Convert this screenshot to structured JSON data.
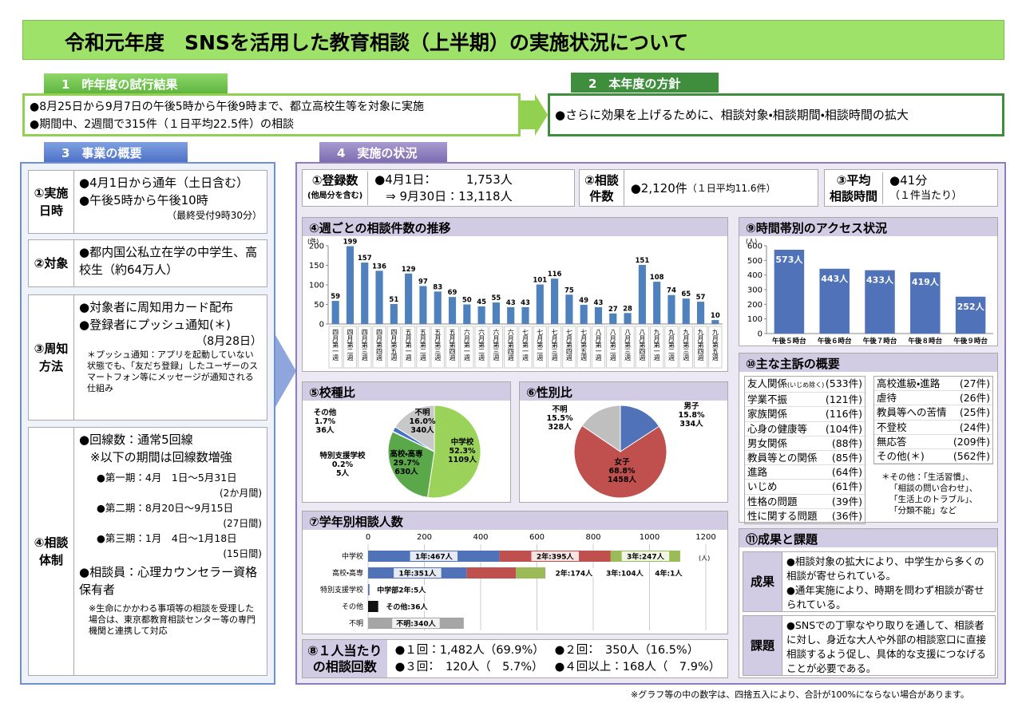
{
  "title": "令和元年度　SNSを活用した教育相談（上半期）の実施状況について",
  "section1": {
    "heading": "1　昨年度の試行結果",
    "lines": [
      "●8月25日から9月7日の午後5時から午後9時まで、都立高校生等を対象に実施",
      "●期間中、2週間で315件（１日平均22.5件）の相談"
    ]
  },
  "section2": {
    "heading": "2　本年度の方針",
    "lines": [
      "●さらに効果を上げるために、相談対象・相談期間・相談時間の拡大"
    ]
  },
  "overview": {
    "heading": "3　事業の概要",
    "blocks": [
      {
        "label": [
          "①実施",
          "日時"
        ],
        "lines": [
          "●4月1日から通年（土日含む）",
          "●午後5時から午後10時",
          "（最終受付9時30分）"
        ]
      },
      {
        "label": [
          "②対象"
        ],
        "lines": [
          "●都内国公私立在学の中学生、高校生（約64万人）"
        ]
      },
      {
        "label": [
          "③周知",
          "方法"
        ],
        "lines": [
          "●対象者に周知用カード配布",
          "●登録者にプッシュ通知(＊)",
          "（8月28日）",
          "＊プッシュ通知：アプリを起動していない状態でも、「友だち登録」したユーザーのスマートフォン等にメッセージが通知される仕組み"
        ]
      },
      {
        "label": [
          "④相談",
          "体制"
        ],
        "lines": [
          "●回線数：通常5回線",
          "※以下の期間は回線数増強",
          "●第一期：4月　1日～5月31日",
          "(2か月間)",
          "●第二期：8月20日～9月15日",
          "(27日間)",
          "●第三期：1月　4日～1月18日",
          "(15日間)",
          "●相談員：心理カウンセラー資格保有者",
          "※生命にかかわる事項等の相談を受理した場合は、東京都教育相談センター等の専門機関と連携して対応"
        ]
      }
    ]
  },
  "status": {
    "heading": "4　実施の状況",
    "registrations": {
      "label": [
        "①登録数",
        "(他局分を含む)"
      ],
      "lines": [
        "●4月1日：　　　1,753人",
        "⇒ 9月30日：13,118人"
      ]
    },
    "consultations": {
      "label": [
        "②相談",
        "件数"
      ],
      "lines": [
        "●2,120件",
        "（１日平均11.6件）"
      ]
    },
    "avg_time": {
      "label": [
        "③平均",
        "相談時間"
      ],
      "lines": [
        "●41分",
        "（１件当たり）"
      ]
    },
    "per_person": {
      "label": [
        "⑧１人当たり",
        "の相談回数"
      ],
      "lines": [
        "●１回：1,482人（69.9%）",
        "●２回：　350人（16.5%）",
        "●３回：　120人（　5.7%）",
        "●４回以上：168人（　7.9%）"
      ]
    },
    "complaints": {
      "title": "⑩主な主訴の概要",
      "left": [
        [
          "友人関係",
          "(いじめ除く)",
          "(533件)"
        ],
        [
          "学業不振",
          "(121件)"
        ],
        [
          "家族関係",
          "(116件)"
        ],
        [
          "心身の健康等",
          "(104件)"
        ],
        [
          "男女関係",
          "(88件)"
        ],
        [
          "教員等との関係",
          "(85件)"
        ],
        [
          "進路",
          "(64件)"
        ],
        [
          "いじめ",
          "(61件)"
        ],
        [
          "性格の問題",
          "(39件)"
        ],
        [
          "性に関する問題",
          "(36件)"
        ]
      ],
      "right": [
        [
          "高校進級・進路",
          "(27件)"
        ],
        [
          "虐待",
          "(26件)"
        ],
        [
          "教員等への苦情",
          "(25件)"
        ],
        [
          "不登校",
          "(24件)"
        ],
        [
          "無応答",
          "(209件)"
        ],
        [
          "その他(＊)",
          "(562件)"
        ]
      ],
      "note": [
        "＊その他：「生活習慣」、",
        "「相談の問い合わせ」、",
        "「生活上のトラブル」、",
        "「分類不能」など"
      ]
    },
    "results": {
      "title": "⑪成果と課題",
      "items": [
        {
          "label": "成果",
          "lines": [
            "●相談対象の拡大により、中学生から多くの相談が寄せられている。",
            "●通年実施により、時期を問わず相談が寄せられている。"
          ]
        },
        {
          "label": "課題",
          "lines": [
            "●SNSでの丁寧なやり取りを通して、相談者に対し、身近な大人や外部の相談窓口に直接相談するよう促し、具体的な支援につなげることが必要である。"
          ]
        }
      ]
    }
  },
  "footer": "※グラフ等の中の数字は、四捨五入により、合計が100%にならない場合があります。",
  "chart_data": [
    {
      "type": "bar",
      "title": "④週ごとの相談件数の推移",
      "y_unit": "(件)",
      "categories": [
        "四月第一週",
        "四月第二週",
        "四月第三週",
        "四月第四週",
        "四月第五週",
        "五月第一週",
        "五月第二週",
        "五月第三週",
        "五月第四週",
        "六月第一週",
        "六月第二週",
        "六月第三週",
        "六月第四週",
        "七月第一週",
        "七月第二週",
        "七月第三週",
        "七月第四週",
        "七月第五週",
        "八月第一週",
        "八月第二週",
        "八月第三週",
        "八月第四週",
        "九月第一週",
        "九月第二週",
        "九月第三週",
        "九月第四週",
        "九月第五週"
      ],
      "values": [
        59,
        199,
        157,
        136,
        51,
        129,
        97,
        83,
        69,
        50,
        45,
        55,
        43,
        43,
        101,
        116,
        75,
        49,
        43,
        27,
        28,
        151,
        108,
        74,
        65,
        57,
        10
      ],
      "color": "#4f81bd",
      "ylim": [
        0,
        200
      ],
      "yticks": [
        0,
        50,
        100,
        150,
        200
      ],
      "grid": false
    },
    {
      "type": "pie",
      "title": "⑤校種比",
      "categories": [
        "中学校",
        "高校・高専",
        "特別支援学校",
        "その他",
        "不明"
      ],
      "values": [
        52.3,
        29.7,
        0.2,
        1.7,
        16.0
      ],
      "value_labels": [
        "52.3%",
        "29.7%",
        "0.2%",
        "1.7%",
        "16.0%"
      ],
      "counts": [
        1109,
        630,
        5,
        36,
        340
      ],
      "count_labels": [
        "1109人",
        "630人",
        "5人",
        "36人",
        "340人"
      ],
      "colors": [
        "#9bd35a",
        "#5aa84a",
        "#8fb0dc",
        "#4472c4",
        "#c8c8c8"
      ]
    },
    {
      "type": "pie",
      "title": "⑥性別比",
      "categories": [
        "男子",
        "女子",
        "不明"
      ],
      "values": [
        15.8,
        68.8,
        15.5
      ],
      "value_labels": [
        "15.8%",
        "68.8%",
        "15.5%"
      ],
      "counts": [
        334,
        1458,
        328
      ],
      "count_labels": [
        "334人",
        "1458人",
        "328人"
      ],
      "colors": [
        "#4f72b8",
        "#c0504d",
        "#bfbfbf"
      ]
    },
    {
      "type": "stacked_hbar",
      "title": "⑦学年別相談人数",
      "x_unit": "(人)",
      "categories": [
        "中学校",
        "高校・高専",
        "特別支援学校",
        "その他",
        "不明"
      ],
      "xlim": [
        0,
        1200
      ],
      "xticks": [
        0,
        200,
        400,
        600,
        800,
        1000,
        1200
      ],
      "grid": true,
      "series": [
        {
          "color": "#4f72b8",
          "values": [
            467,
            351,
            null,
            null,
            null
          ],
          "value_labels": [
            "1年:467人",
            "1年:351人",
            null,
            null,
            null
          ]
        },
        {
          "color": "#c0504d",
          "values": [
            395,
            174,
            null,
            null,
            null
          ],
          "value_labels": [
            "2年:395人",
            "2年:174人",
            null,
            null,
            null
          ]
        },
        {
          "color": "#9bbb59",
          "values": [
            247,
            104,
            null,
            null,
            null
          ],
          "value_labels": [
            "3年:247人",
            "3年:104人",
            null,
            null,
            null
          ]
        },
        {
          "color": "#8064a2",
          "values": [
            null,
            1,
            null,
            null,
            null
          ],
          "value_labels": [
            null,
            "4年:1人",
            null,
            null,
            null
          ]
        },
        {
          "color": "#4f72b8",
          "values": [
            null,
            null,
            5,
            null,
            null
          ],
          "value_labels": [
            null,
            null,
            "中学部2年:5人",
            null,
            null
          ]
        },
        {
          "color": "#111111",
          "values": [
            null,
            null,
            null,
            36,
            null
          ],
          "value_labels": [
            null,
            null,
            null,
            "その他:36人",
            null
          ]
        },
        {
          "color": "#a6a6a6",
          "values": [
            null,
            null,
            null,
            null,
            340
          ],
          "value_labels": [
            null,
            null,
            null,
            null,
            "不明:340人"
          ]
        }
      ]
    },
    {
      "type": "bar",
      "title": "⑨時間帯別のアクセス状況",
      "y_unit": "(人)",
      "categories": [
        "午後５時台",
        "午後６時台",
        "午後７時台",
        "午後８時台",
        "午後９時台"
      ],
      "values": [
        573,
        443,
        433,
        419,
        252
      ],
      "value_labels": [
        "573人",
        "443人",
        "433人",
        "419人",
        "252人"
      ],
      "color": "#4f72b8",
      "ylim": [
        0,
        600
      ],
      "yticks": [
        0,
        100,
        200,
        300,
        400,
        500,
        600
      ],
      "grid": false
    }
  ]
}
